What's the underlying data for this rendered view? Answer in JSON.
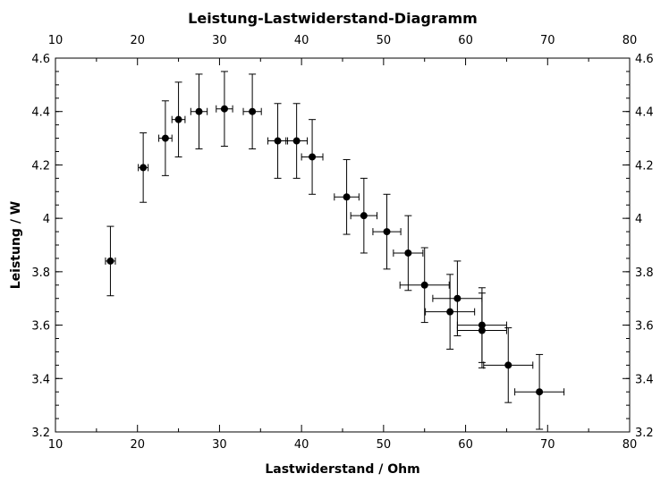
{
  "chart_data": {
    "type": "scatter",
    "title": "Leistung-Lastwiderstand-Diagramm",
    "xlabel": "Lastwiderstand / Ohm",
    "ylabel": "Leistung / W",
    "xlim": [
      10,
      80
    ],
    "ylim": [
      3.2,
      4.6
    ],
    "x_ticks": [
      "10",
      "20",
      "30",
      "40",
      "50",
      "60",
      "70",
      "80"
    ],
    "y_ticks": [
      "3.2",
      "3.4",
      "3.6",
      "3.8",
      "4",
      "4.2",
      "4.4",
      "4.6"
    ],
    "grid": false,
    "marker_color": "#000000",
    "points": [
      {
        "x": 16.7,
        "y": 3.84,
        "xerr": 0.6,
        "yerr": 0.13
      },
      {
        "x": 20.7,
        "y": 4.19,
        "xerr": 0.6,
        "yerr": 0.13
      },
      {
        "x": 23.4,
        "y": 4.3,
        "xerr": 0.8,
        "yerr": 0.14
      },
      {
        "x": 25.0,
        "y": 4.37,
        "xerr": 0.8,
        "yerr": 0.14
      },
      {
        "x": 27.5,
        "y": 4.4,
        "xerr": 1.0,
        "yerr": 0.14
      },
      {
        "x": 30.6,
        "y": 4.41,
        "xerr": 1.0,
        "yerr": 0.14
      },
      {
        "x": 34.0,
        "y": 4.4,
        "xerr": 1.1,
        "yerr": 0.14
      },
      {
        "x": 37.1,
        "y": 4.29,
        "xerr": 1.2,
        "yerr": 0.14
      },
      {
        "x": 39.4,
        "y": 4.29,
        "xerr": 1.3,
        "yerr": 0.14
      },
      {
        "x": 41.3,
        "y": 4.23,
        "xerr": 1.3,
        "yerr": 0.14
      },
      {
        "x": 45.5,
        "y": 4.08,
        "xerr": 1.5,
        "yerr": 0.14
      },
      {
        "x": 47.6,
        "y": 4.01,
        "xerr": 1.6,
        "yerr": 0.14
      },
      {
        "x": 50.4,
        "y": 3.95,
        "xerr": 1.7,
        "yerr": 0.14
      },
      {
        "x": 53.0,
        "y": 3.87,
        "xerr": 1.8,
        "yerr": 0.14
      },
      {
        "x": 55.0,
        "y": 3.75,
        "xerr": 3.0,
        "yerr": 0.14
      },
      {
        "x": 58.1,
        "y": 3.65,
        "xerr": 3.0,
        "yerr": 0.14
      },
      {
        "x": 59.0,
        "y": 3.7,
        "xerr": 3.0,
        "yerr": 0.14
      },
      {
        "x": 62.0,
        "y": 3.6,
        "xerr": 3.0,
        "yerr": 0.14
      },
      {
        "x": 62.0,
        "y": 3.58,
        "xerr": 3.0,
        "yerr": 0.14
      },
      {
        "x": 65.2,
        "y": 3.45,
        "xerr": 3.0,
        "yerr": 0.14
      },
      {
        "x": 69.0,
        "y": 3.35,
        "xerr": 3.0,
        "yerr": 0.14
      }
    ]
  }
}
